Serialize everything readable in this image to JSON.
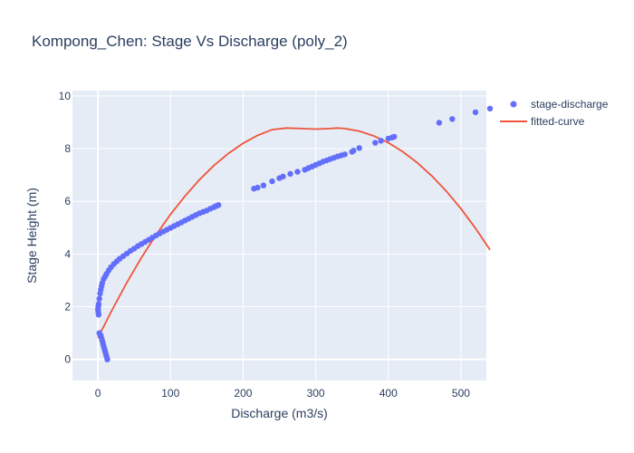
{
  "chart_data": {
    "type": "scatter",
    "title": "Kompong_Chen: Stage Vs Discharge (poly_2)",
    "xlabel": "Discharge (m3/s)",
    "ylabel": "Stage Height (m)",
    "xlim": [
      -35,
      535
    ],
    "ylim": [
      -0.8,
      10.2
    ],
    "xticks": [
      0,
      100,
      200,
      300,
      400,
      500
    ],
    "yticks": [
      0,
      2,
      4,
      6,
      8,
      10
    ],
    "grid": true,
    "legend_position": "top-right",
    "colors": {
      "points": "#636efa",
      "curve": "#ef553b",
      "plot_bg": "#e5ecf6",
      "grid": "#ffffff"
    },
    "series": [
      {
        "name": "stage-discharge",
        "mode": "markers",
        "x": [
          13,
          12,
          11,
          10,
          9,
          8,
          7,
          6,
          5,
          4,
          3,
          2,
          1,
          0.5,
          0.2,
          0.5,
          1,
          2,
          3,
          4,
          5,
          6,
          8,
          10,
          12,
          15,
          18,
          22,
          26,
          30,
          35,
          40,
          45,
          50,
          55,
          60,
          65,
          70,
          75,
          80,
          85,
          90,
          95,
          100,
          105,
          110,
          115,
          120,
          125,
          130,
          135,
          140,
          145,
          150,
          155,
          160,
          163,
          166,
          215,
          220,
          228,
          240,
          250,
          255,
          265,
          275,
          285,
          290,
          295,
          300,
          305,
          310,
          315,
          320,
          325,
          330,
          335,
          340,
          350,
          352,
          360,
          382,
          390,
          400,
          405,
          408,
          470,
          488,
          520,
          540
        ],
        "y": [
          0.0,
          0.1,
          0.2,
          0.3,
          0.4,
          0.5,
          0.6,
          0.7,
          0.8,
          0.9,
          0.95,
          1.0,
          1.7,
          1.8,
          1.9,
          2.0,
          2.1,
          2.3,
          2.5,
          2.65,
          2.78,
          2.9,
          3.05,
          3.15,
          3.25,
          3.38,
          3.5,
          3.62,
          3.72,
          3.82,
          3.92,
          4.02,
          4.12,
          4.2,
          4.3,
          4.38,
          4.46,
          4.54,
          4.62,
          4.7,
          4.78,
          4.85,
          4.92,
          4.99,
          5.06,
          5.13,
          5.2,
          5.27,
          5.34,
          5.41,
          5.48,
          5.55,
          5.6,
          5.65,
          5.72,
          5.78,
          5.82,
          5.86,
          6.48,
          6.52,
          6.6,
          6.76,
          6.88,
          6.94,
          7.04,
          7.12,
          7.2,
          7.26,
          7.32,
          7.38,
          7.44,
          7.5,
          7.55,
          7.6,
          7.65,
          7.7,
          7.74,
          7.78,
          7.88,
          7.92,
          8.02,
          8.22,
          8.3,
          8.38,
          8.42,
          8.45,
          8.98,
          9.12,
          9.38,
          9.52
        ]
      },
      {
        "name": "fitted-curve",
        "mode": "lines",
        "x": [
          0,
          20,
          40,
          60,
          80,
          100,
          120,
          140,
          160,
          180,
          200,
          220,
          240,
          260,
          280,
          300,
          320,
          330,
          340,
          360,
          380,
          400,
          420,
          440,
          460,
          480,
          500,
          520,
          540
        ],
        "y": [
          0.82,
          1.9,
          2.92,
          3.86,
          4.72,
          5.5,
          6.2,
          6.82,
          7.36,
          7.82,
          8.2,
          8.5,
          8.72,
          8.78,
          8.76,
          8.74,
          8.76,
          8.78,
          8.76,
          8.66,
          8.48,
          8.22,
          7.88,
          7.46,
          6.96,
          6.38,
          5.72,
          4.98,
          4.16
        ]
      }
    ]
  }
}
